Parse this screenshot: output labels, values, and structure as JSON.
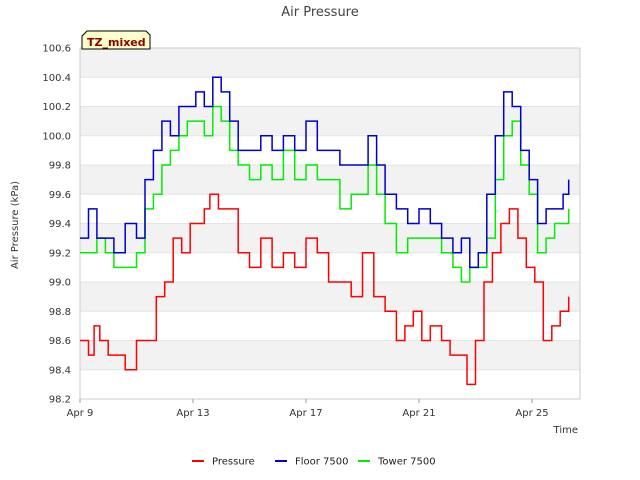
{
  "chart_data": {
    "type": "line",
    "title": "Air Pressure",
    "xlabel": "Time",
    "ylabel": "Air Pressure (kPa)",
    "badge": "TZ_mixed",
    "ylim": [
      98.2,
      100.6
    ],
    "xlim": [
      9.0,
      26.7
    ],
    "y_ticks": [
      98.2,
      98.4,
      98.6,
      98.8,
      99.0,
      99.2,
      99.4,
      99.6,
      99.8,
      100.0,
      100.2,
      100.4,
      100.6
    ],
    "y_tick_labels": [
      "98.2",
      "98.4",
      "98.6",
      "98.8",
      "99.0",
      "99.2",
      "99.4",
      "99.6",
      "99.8",
      "100.0",
      "100.2",
      "100.4",
      "100.6"
    ],
    "x_ticks": [
      9,
      13,
      17,
      21,
      25
    ],
    "x_tick_labels": [
      "Apr 9",
      "Apr 13",
      "Apr 17",
      "Apr 21",
      "Apr 25"
    ],
    "series": [
      {
        "name": "Pressure",
        "color": "#ff0000",
        "x": [
          9.0,
          9.3,
          9.5,
          9.7,
          10.0,
          10.3,
          10.6,
          11.0,
          11.3,
          11.7,
          12.0,
          12.3,
          12.6,
          12.9,
          13.2,
          13.4,
          13.6,
          13.9,
          14.2,
          14.6,
          15.0,
          15.4,
          15.8,
          16.2,
          16.6,
          17.0,
          17.4,
          17.8,
          18.2,
          18.6,
          19.0,
          19.4,
          19.8,
          20.2,
          20.5,
          20.8,
          21.1,
          21.4,
          21.8,
          22.1,
          22.4,
          22.7,
          23.0,
          23.3,
          23.6,
          23.9,
          24.2,
          24.5,
          24.8,
          25.1,
          25.4,
          25.7,
          26.0,
          26.3
        ],
        "values": [
          98.6,
          98.5,
          98.7,
          98.6,
          98.5,
          98.5,
          98.4,
          98.6,
          98.6,
          98.9,
          99.0,
          99.3,
          99.2,
          99.4,
          99.4,
          99.5,
          99.6,
          99.5,
          99.5,
          99.2,
          99.1,
          99.3,
          99.1,
          99.2,
          99.1,
          99.3,
          99.2,
          99.0,
          99.0,
          98.9,
          99.2,
          98.9,
          98.8,
          98.6,
          98.7,
          98.8,
          98.6,
          98.7,
          98.6,
          98.5,
          98.5,
          98.3,
          98.6,
          99.0,
          99.2,
          99.4,
          99.5,
          99.3,
          99.1,
          99.0,
          98.6,
          98.7,
          98.8,
          98.9
        ]
      },
      {
        "name": "Floor 7500",
        "color": "#0000cc",
        "x": [
          9.0,
          9.3,
          9.6,
          9.9,
          10.2,
          10.6,
          11.0,
          11.3,
          11.6,
          11.9,
          12.2,
          12.5,
          12.8,
          13.1,
          13.4,
          13.7,
          14.0,
          14.3,
          14.6,
          15.0,
          15.4,
          15.8,
          16.2,
          16.6,
          17.0,
          17.4,
          17.8,
          18.2,
          18.6,
          18.9,
          19.2,
          19.5,
          19.8,
          20.2,
          20.6,
          21.0,
          21.4,
          21.8,
          22.2,
          22.5,
          22.8,
          23.1,
          23.4,
          23.7,
          24.0,
          24.3,
          24.6,
          24.9,
          25.2,
          25.5,
          25.8,
          26.1,
          26.3
        ],
        "values": [
          99.3,
          99.5,
          99.3,
          99.3,
          99.2,
          99.4,
          99.3,
          99.7,
          99.9,
          100.1,
          100.0,
          100.2,
          100.2,
          100.3,
          100.2,
          100.4,
          100.3,
          100.1,
          99.9,
          99.9,
          100.0,
          99.9,
          100.0,
          99.9,
          100.1,
          99.9,
          99.9,
          99.8,
          99.8,
          99.8,
          100.0,
          99.8,
          99.6,
          99.5,
          99.4,
          99.5,
          99.4,
          99.3,
          99.2,
          99.3,
          99.1,
          99.2,
          99.6,
          100.0,
          100.3,
          100.2,
          99.9,
          99.7,
          99.4,
          99.5,
          99.5,
          99.6,
          99.7
        ]
      },
      {
        "name": "Tower 7500",
        "color": "#00ee00",
        "x": [
          9.0,
          9.3,
          9.6,
          9.9,
          10.2,
          10.6,
          11.0,
          11.3,
          11.6,
          11.9,
          12.2,
          12.5,
          12.8,
          13.1,
          13.4,
          13.7,
          14.0,
          14.3,
          14.6,
          15.0,
          15.4,
          15.8,
          16.2,
          16.6,
          17.0,
          17.4,
          17.8,
          18.2,
          18.6,
          18.9,
          19.2,
          19.5,
          19.8,
          20.2,
          20.6,
          21.0,
          21.4,
          21.8,
          22.2,
          22.5,
          22.8,
          23.1,
          23.4,
          23.7,
          24.0,
          24.3,
          24.6,
          24.9,
          25.2,
          25.5,
          25.8,
          26.1,
          26.3
        ],
        "values": [
          99.2,
          99.2,
          99.3,
          99.2,
          99.1,
          99.1,
          99.2,
          99.5,
          99.6,
          99.8,
          99.9,
          100.0,
          100.1,
          100.1,
          100.0,
          100.2,
          100.1,
          99.9,
          99.8,
          99.7,
          99.8,
          99.7,
          99.9,
          99.7,
          99.8,
          99.7,
          99.7,
          99.5,
          99.6,
          99.6,
          99.8,
          99.6,
          99.4,
          99.2,
          99.3,
          99.3,
          99.3,
          99.2,
          99.1,
          99.0,
          99.1,
          99.1,
          99.3,
          99.7,
          100.0,
          100.1,
          99.8,
          99.6,
          99.2,
          99.3,
          99.4,
          99.4,
          99.5
        ]
      }
    ]
  }
}
